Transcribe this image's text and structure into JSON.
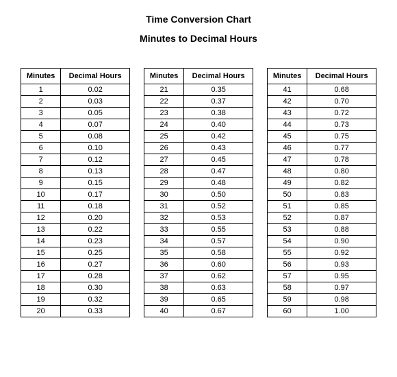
{
  "title": "Time Conversion Chart",
  "subtitle": "Minutes to Decimal Hours",
  "columns": {
    "minutes": "Minutes",
    "decimal_hours": "Decimal Hours"
  },
  "tables": [
    {
      "rows": [
        {
          "minutes": "1",
          "decimal": "0.02"
        },
        {
          "minutes": "2",
          "decimal": "0.03"
        },
        {
          "minutes": "3",
          "decimal": "0.05"
        },
        {
          "minutes": "4",
          "decimal": "0.07"
        },
        {
          "minutes": "5",
          "decimal": "0.08"
        },
        {
          "minutes": "6",
          "decimal": "0.10"
        },
        {
          "minutes": "7",
          "decimal": "0.12"
        },
        {
          "minutes": "8",
          "decimal": "0.13"
        },
        {
          "minutes": "9",
          "decimal": "0.15"
        },
        {
          "minutes": "10",
          "decimal": "0.17"
        },
        {
          "minutes": "11",
          "decimal": "0.18"
        },
        {
          "minutes": "12",
          "decimal": "0.20"
        },
        {
          "minutes": "13",
          "decimal": "0.22"
        },
        {
          "minutes": "14",
          "decimal": "0.23"
        },
        {
          "minutes": "15",
          "decimal": "0.25"
        },
        {
          "minutes": "16",
          "decimal": "0.27"
        },
        {
          "minutes": "17",
          "decimal": "0.28"
        },
        {
          "minutes": "18",
          "decimal": "0.30"
        },
        {
          "minutes": "19",
          "decimal": "0.32"
        },
        {
          "minutes": "20",
          "decimal": "0.33"
        }
      ]
    },
    {
      "rows": [
        {
          "minutes": "21",
          "decimal": "0.35"
        },
        {
          "minutes": "22",
          "decimal": "0.37"
        },
        {
          "minutes": "23",
          "decimal": "0.38"
        },
        {
          "minutes": "24",
          "decimal": "0.40"
        },
        {
          "minutes": "25",
          "decimal": "0.42"
        },
        {
          "minutes": "26",
          "decimal": "0.43"
        },
        {
          "minutes": "27",
          "decimal": "0.45"
        },
        {
          "minutes": "28",
          "decimal": "0.47"
        },
        {
          "minutes": "29",
          "decimal": "0.48"
        },
        {
          "minutes": "30",
          "decimal": "0.50"
        },
        {
          "minutes": "31",
          "decimal": "0.52"
        },
        {
          "minutes": "32",
          "decimal": "0.53"
        },
        {
          "minutes": "33",
          "decimal": "0.55"
        },
        {
          "minutes": "34",
          "decimal": "0.57"
        },
        {
          "minutes": "35",
          "decimal": "0.58"
        },
        {
          "minutes": "36",
          "decimal": "0.60"
        },
        {
          "minutes": "37",
          "decimal": "0.62"
        },
        {
          "minutes": "38",
          "decimal": "0.63"
        },
        {
          "minutes": "39",
          "decimal": "0.65"
        },
        {
          "minutes": "40",
          "decimal": "0.67"
        }
      ]
    },
    {
      "rows": [
        {
          "minutes": "41",
          "decimal": "0.68"
        },
        {
          "minutes": "42",
          "decimal": "0.70"
        },
        {
          "minutes": "43",
          "decimal": "0.72"
        },
        {
          "minutes": "44",
          "decimal": "0.73"
        },
        {
          "minutes": "45",
          "decimal": "0.75"
        },
        {
          "minutes": "46",
          "decimal": "0.77"
        },
        {
          "minutes": "47",
          "decimal": "0.78"
        },
        {
          "minutes": "48",
          "decimal": "0.80"
        },
        {
          "minutes": "49",
          "decimal": "0.82"
        },
        {
          "minutes": "50",
          "decimal": "0.83"
        },
        {
          "minutes": "51",
          "decimal": "0.85"
        },
        {
          "minutes": "52",
          "decimal": "0.87"
        },
        {
          "minutes": "53",
          "decimal": "0.88"
        },
        {
          "minutes": "54",
          "decimal": "0.90"
        },
        {
          "minutes": "55",
          "decimal": "0.92"
        },
        {
          "minutes": "56",
          "decimal": "0.93"
        },
        {
          "minutes": "57",
          "decimal": "0.95"
        },
        {
          "minutes": "58",
          "decimal": "0.97"
        },
        {
          "minutes": "59",
          "decimal": "0.98"
        },
        {
          "minutes": "60",
          "decimal": "1.00"
        }
      ]
    }
  ],
  "styling": {
    "background_color": "#ffffff",
    "border_color": "#000000",
    "text_color": "#000000",
    "title_fontsize": 14,
    "header_fontsize": 11,
    "cell_fontsize": 11,
    "font_family": "Arial, sans-serif"
  }
}
